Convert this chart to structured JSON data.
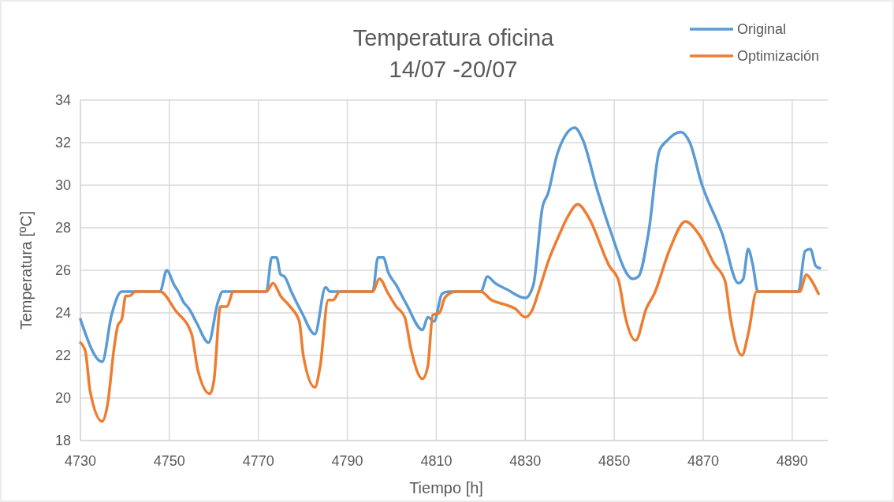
{
  "chart_data": {
    "type": "line",
    "title": "Temperatura oficina\n14/07 -20/07",
    "xlabel": "Tiempo [h]",
    "ylabel": "Temperatura [ºC]",
    "xlim": [
      4730,
      4898
    ],
    "xticks": [
      4730,
      4750,
      4770,
      4790,
      4810,
      4830,
      4850,
      4870,
      4890
    ],
    "ylim": [
      18,
      34
    ],
    "yticks": [
      18,
      20,
      22,
      24,
      26,
      28,
      30,
      32,
      34
    ],
    "grid": true,
    "legend": "top right",
    "marker": "none",
    "line_style": "solid",
    "series": [
      {
        "name": "Original",
        "color": "#5b9bd5",
        "x": [
          4730,
          4734.9,
          4737,
          4739.3,
          4747.9,
          4749.4,
          4751.1,
          4752,
          4753.2,
          4754.4,
          4756.2,
          4758.8,
          4760.9,
          4762,
          4771.8,
          4773,
          4774.1,
          4775,
          4775.9,
          4777.4,
          4779.8,
          4782.7,
          4785.1,
          4786.1,
          4795.7,
          4796.9,
          4798.1,
          4799.2,
          4801,
          4803.3,
          4806.9,
          4808.1,
          4809.5,
          4811.3,
          4812.8,
          4820,
          4821.5,
          4823.2,
          4825.9,
          4830,
          4831.8,
          4833.9,
          4835.1,
          4837.1,
          4838.9,
          4841.1,
          4843,
          4846,
          4848.9,
          4854.2,
          4855.4,
          4857.8,
          4860.1,
          4861.9,
          4864.9,
          4867,
          4869.6,
          4874.3,
          4877.9,
          4879,
          4880.1,
          4881.1,
          4882.3,
          4891.4,
          4892.9,
          4894.1,
          4895.3,
          4896.2
        ],
        "values": [
          23.7,
          21.7,
          23.9,
          25.0,
          25.0,
          26.0,
          25.3,
          25.0,
          24.5,
          24.2,
          23.5,
          22.6,
          24.5,
          25.0,
          25.0,
          26.6,
          26.6,
          25.8,
          25.7,
          25.0,
          24.0,
          23.0,
          25.2,
          25.0,
          25.0,
          26.6,
          26.6,
          25.9,
          25.3,
          24.4,
          23.2,
          23.8,
          23.6,
          24.9,
          25.0,
          25.0,
          25.7,
          25.4,
          25.1,
          24.7,
          25.3,
          29.0,
          29.6,
          31.4,
          32.3,
          32.7,
          32.1,
          29.9,
          28.0,
          25.6,
          25.7,
          27.9,
          31.6,
          32.1,
          32.5,
          32.0,
          30.1,
          27.7,
          25.4,
          25.6,
          27.0,
          26.3,
          25.0,
          25.0,
          26.9,
          27.0,
          26.2,
          26.1
        ]
      },
      {
        "name": "Optimización",
        "color": "#ed7d31",
        "x": [
          4730,
          4731.1,
          4732.2,
          4734.9,
          4736.1,
          4737.6,
          4738.4,
          4739.3,
          4740.2,
          4741.1,
          4742.3,
          4747.9,
          4751.4,
          4755,
          4756.4,
          4759.1,
          4760,
          4761.5,
          4762.9,
          4764.4,
          4771.8,
          4773.3,
          4775,
          4777.1,
          4779.2,
          4780.1,
          4782.7,
          4783.9,
          4785.7,
          4786.8,
          4788.3,
          4795.7,
          4797.2,
          4799.2,
          4801,
          4802.9,
          4804.3,
          4806.9,
          4808.1,
          4809.2,
          4810.7,
          4811.9,
          4812.3,
          4814.4,
          4820,
          4822.4,
          4825.3,
          4827.7,
          4830,
          4831.5,
          4833,
          4835.3,
          4837.7,
          4839.5,
          4841.8,
          4844.2,
          4848.9,
          4851,
          4852.5,
          4854.8,
          4857.2,
          4859,
          4862.5,
          4866,
          4869,
          4872.5,
          4874.9,
          4876.1,
          4878.7,
          4880.2,
          4882,
          4891.7,
          4893.2,
          4894.4,
          4895.9
        ],
        "values": [
          22.6,
          22.2,
          20.3,
          18.9,
          19.7,
          22.4,
          23.4,
          23.7,
          24.8,
          24.8,
          25.0,
          25.0,
          24.1,
          23.0,
          21.3,
          20.2,
          20.8,
          24.3,
          24.3,
          25.0,
          25.0,
          25.4,
          24.8,
          24.3,
          23.6,
          22.0,
          20.5,
          21.5,
          24.6,
          24.6,
          25.0,
          25.0,
          25.6,
          24.9,
          24.3,
          23.8,
          22.3,
          20.9,
          21.5,
          23.9,
          24.0,
          24.7,
          24.8,
          25.0,
          25.0,
          24.6,
          24.4,
          24.2,
          23.8,
          24.1,
          25.0,
          26.5,
          27.7,
          28.5,
          29.1,
          28.5,
          26.2,
          25.5,
          23.8,
          22.7,
          24.2,
          24.9,
          27.0,
          28.3,
          27.7,
          26.3,
          25.5,
          23.8,
          22.0,
          23.1,
          25.0,
          25.0,
          25.8,
          25.5,
          24.9
        ]
      }
    ]
  }
}
